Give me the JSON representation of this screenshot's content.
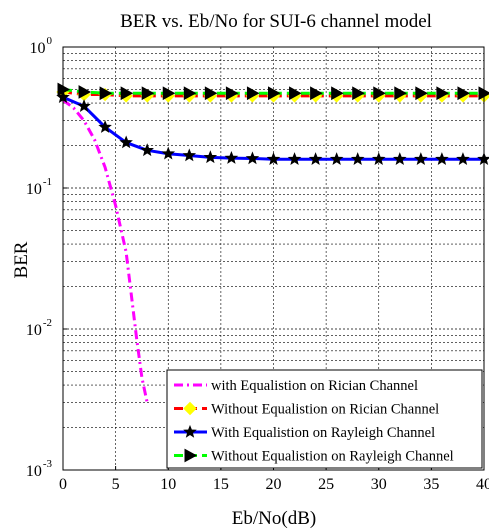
{
  "chart_data": {
    "type": "line",
    "title": "BER vs. Eb/No for SUI-6 channel model",
    "xlabel": "Eb/No(dB)",
    "ylabel": "BER",
    "xlim": [
      0,
      40
    ],
    "ylim": [
      0.001,
      1
    ],
    "yscale": "log",
    "grid": true,
    "legend_position": "bottom-right",
    "x_ticks": [
      "0",
      "5",
      "10",
      "15",
      "20",
      "25",
      "30",
      "35",
      "40"
    ],
    "y_ticks": [
      {
        "base": "10",
        "exp": "0",
        "value": 1
      },
      {
        "base": "10",
        "exp": "-1",
        "value": 0.1
      },
      {
        "base": "10",
        "exp": "-2",
        "value": 0.01
      },
      {
        "base": "10",
        "exp": "-3",
        "value": 0.001
      }
    ],
    "series": [
      {
        "name": "with Equalistion on Rician Channel",
        "color": "#ff00ff",
        "style": "dashdot",
        "marker": "none",
        "x": [
          0,
          1,
          2,
          3,
          4,
          5,
          6,
          7,
          7.5,
          8
        ],
        "y": [
          0.42,
          0.37,
          0.3,
          0.22,
          0.14,
          0.075,
          0.035,
          0.0085,
          0.0045,
          0.003
        ]
      },
      {
        "name": "Without Equalistion on Rician Channel",
        "color": "#ff0000",
        "marker_color": "#ffff00",
        "style": "dashed",
        "marker": "diamond",
        "x": [
          0,
          2,
          4,
          6,
          8,
          10,
          12,
          14,
          16,
          18,
          20,
          22,
          24,
          26,
          28,
          30,
          32,
          34,
          36,
          38,
          40
        ],
        "y": [
          0.48,
          0.46,
          0.46,
          0.45,
          0.45,
          0.45,
          0.45,
          0.45,
          0.45,
          0.45,
          0.45,
          0.45,
          0.45,
          0.45,
          0.45,
          0.45,
          0.45,
          0.45,
          0.45,
          0.45,
          0.45
        ]
      },
      {
        "name": "With Equalistion on Rayleigh Channel",
        "color": "#0000ff",
        "marker_color": "#000000",
        "style": "solid",
        "marker": "star",
        "x": [
          0,
          2,
          4,
          6,
          8,
          10,
          12,
          14,
          16,
          18,
          20,
          22,
          24,
          26,
          28,
          30,
          32,
          34,
          36,
          38,
          40
        ],
        "y": [
          0.44,
          0.38,
          0.27,
          0.21,
          0.185,
          0.175,
          0.17,
          0.165,
          0.163,
          0.162,
          0.16,
          0.16,
          0.16,
          0.16,
          0.16,
          0.16,
          0.16,
          0.16,
          0.16,
          0.16,
          0.16
        ]
      },
      {
        "name": "Without Equalistion on Rayleigh Channel",
        "color": "#00ff00",
        "marker_color": "#000000",
        "style": "dashed",
        "marker": "triangle-right",
        "x": [
          0,
          2,
          4,
          6,
          8,
          10,
          12,
          14,
          16,
          18,
          20,
          22,
          24,
          26,
          28,
          30,
          32,
          34,
          36,
          38,
          40
        ],
        "y": [
          0.5,
          0.48,
          0.47,
          0.47,
          0.47,
          0.47,
          0.47,
          0.47,
          0.47,
          0.47,
          0.47,
          0.47,
          0.47,
          0.47,
          0.47,
          0.47,
          0.47,
          0.47,
          0.47,
          0.47,
          0.47
        ]
      }
    ]
  }
}
